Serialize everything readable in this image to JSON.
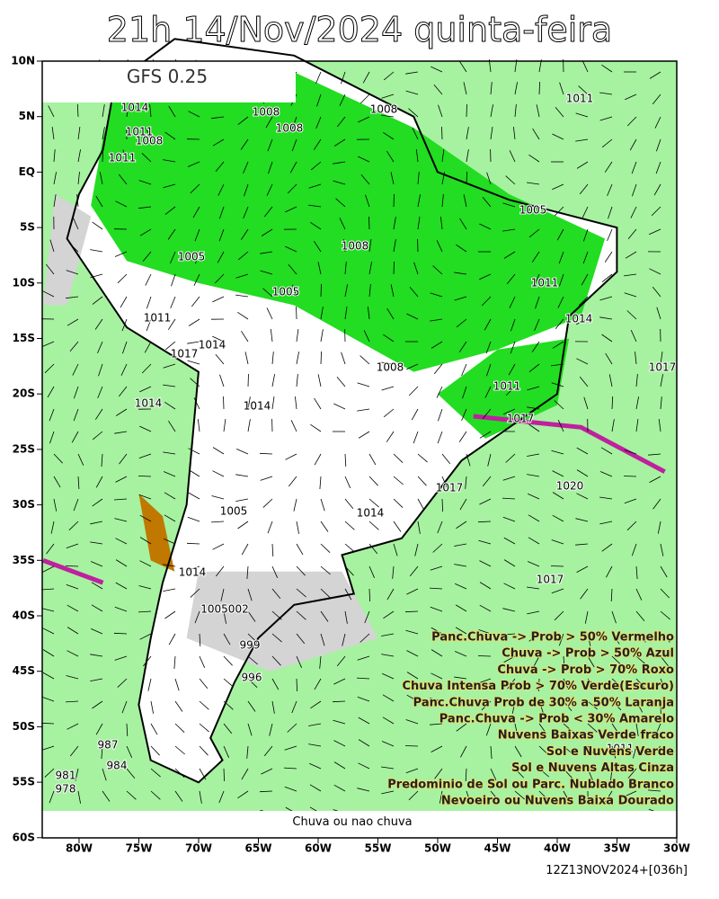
{
  "title": "21h 14/Nov/2024 quinta-feira",
  "model": "GFS 0.25",
  "lat_labels": [
    "10N",
    "5N",
    "EQ",
    "5S",
    "10S",
    "15S",
    "20S",
    "25S",
    "30S",
    "35S",
    "40S",
    "45S",
    "50S",
    "55S",
    "60S"
  ],
  "lon_labels": [
    "80W",
    "75W",
    "70W",
    "65W",
    "60W",
    "55W",
    "50W",
    "45W",
    "40W",
    "35W",
    "30W"
  ],
  "isobar_labels": [
    "1011",
    "1014",
    "1011",
    "1008",
    "1011",
    "1008",
    "1008",
    "1008",
    "1005",
    "1008",
    "1005",
    "1005",
    "1011",
    "1014",
    "1011",
    "1017",
    "1014",
    "1014",
    "1017",
    "1014",
    "1008",
    "1011",
    "1017",
    "1020",
    "1014",
    "1005",
    "1017",
    "1014",
    "1017",
    "1005002",
    "999",
    "996",
    "987",
    "984",
    "981",
    "978",
    "1011"
  ],
  "legend": [
    "Panc.Chuva -> Prob > 50% Vermelho",
    "Chuva -> Prob > 50% Azul",
    "Chuva -> Prob > 70% Roxo",
    "Chuva Intensa Prob > 70% Verde(Escuro)",
    "Panc.Chuva Prob de 30% a 50% Laranja",
    "Panc.Chuva -> Prob < 30% Amarelo",
    "Nuvens Baixas Verde fraco",
    "Sol e Nuvens Verde",
    "Sol e Nuvens Altas Cinza",
    "Predominio de Sol ou Parc. Nublado Branco",
    "Nevoeiro ou Nuvens Baixa Dourado"
  ],
  "footer": "Chuva ou nao chuva",
  "run": "12Z13NOV2024+[036h]"
}
